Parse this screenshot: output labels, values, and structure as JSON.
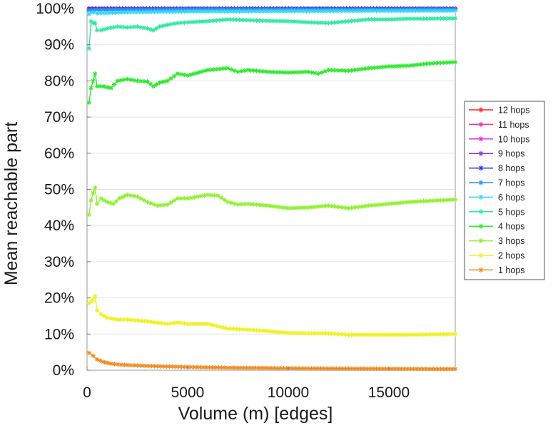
{
  "chart_data": {
    "type": "line",
    "xlabel": "Volume (m) [edges]",
    "ylabel": "Mean reachable part",
    "xlim": [
      0,
      18300
    ],
    "ylim": [
      0,
      100
    ],
    "x_ticks": [
      0,
      5000,
      10000,
      15000
    ],
    "x_tick_labels": [
      "0",
      "5000",
      "10000",
      "15000"
    ],
    "y_ticks": [
      0,
      10,
      20,
      30,
      40,
      50,
      60,
      70,
      80,
      90,
      100
    ],
    "y_tick_labels": [
      "0%",
      "10%",
      "20%",
      "30%",
      "40%",
      "50%",
      "60%",
      "70%",
      "80%",
      "90%",
      "100%"
    ],
    "grid": "horizontal",
    "legend_position": "right",
    "series": [
      {
        "name": "12 hops",
        "color": "#ff2020",
        "points": [
          [
            100,
            100
          ],
          [
            18300,
            100
          ]
        ]
      },
      {
        "name": "11 hops",
        "color": "#ff2a9a",
        "points": [
          [
            100,
            100
          ],
          [
            18300,
            100
          ]
        ]
      },
      {
        "name": "10 hops",
        "color": "#e829e0",
        "points": [
          [
            100,
            100
          ],
          [
            18300,
            100
          ]
        ]
      },
      {
        "name": "9 hops",
        "color": "#8a2be8",
        "points": [
          [
            100,
            100
          ],
          [
            18300,
            100
          ]
        ]
      },
      {
        "name": "8 hops",
        "color": "#2030e8",
        "points": [
          [
            100,
            99.9
          ],
          [
            18300,
            99.9
          ]
        ]
      },
      {
        "name": "7 hops",
        "color": "#2e90f0",
        "points": [
          [
            100,
            99.5
          ],
          [
            500,
            99.7
          ],
          [
            5000,
            99.8
          ],
          [
            18300,
            99.8
          ]
        ]
      },
      {
        "name": "6 hops",
        "color": "#30d8f5",
        "points": [
          [
            100,
            98.5
          ],
          [
            300,
            99
          ],
          [
            500,
            98.7
          ],
          [
            2000,
            99
          ],
          [
            5000,
            99.2
          ],
          [
            10000,
            99.3
          ],
          [
            18300,
            99.4
          ]
        ]
      },
      {
        "name": "5 hops",
        "color": "#2ee8a0",
        "points": [
          [
            100,
            89
          ],
          [
            200,
            96.5
          ],
          [
            300,
            96
          ],
          [
            400,
            96
          ],
          [
            500,
            94
          ],
          [
            700,
            94
          ],
          [
            1000,
            94.5
          ],
          [
            1500,
            95
          ],
          [
            2000,
            94.8
          ],
          [
            2500,
            95
          ],
          [
            3000,
            94.5
          ],
          [
            3300,
            94
          ],
          [
            3600,
            95
          ],
          [
            4000,
            95.5
          ],
          [
            4500,
            96
          ],
          [
            5000,
            96.2
          ],
          [
            6000,
            96.5
          ],
          [
            7000,
            97
          ],
          [
            8000,
            96.8
          ],
          [
            9000,
            96.6
          ],
          [
            10000,
            96.5
          ],
          [
            11000,
            96.2
          ],
          [
            12000,
            96
          ],
          [
            13000,
            96.5
          ],
          [
            14000,
            97
          ],
          [
            15000,
            97
          ],
          [
            16000,
            97.2
          ],
          [
            17000,
            97.2
          ],
          [
            18300,
            97.3
          ]
        ]
      },
      {
        "name": "4 hops",
        "color": "#2ee82e",
        "points": [
          [
            100,
            74
          ],
          [
            200,
            78
          ],
          [
            300,
            80
          ],
          [
            400,
            82
          ],
          [
            500,
            78.5
          ],
          [
            800,
            78.5
          ],
          [
            1200,
            78
          ],
          [
            1500,
            80
          ],
          [
            2000,
            80.5
          ],
          [
            2500,
            80
          ],
          [
            3000,
            79.8
          ],
          [
            3300,
            78.5
          ],
          [
            3600,
            79.5
          ],
          [
            4000,
            80
          ],
          [
            4500,
            82
          ],
          [
            5000,
            81.5
          ],
          [
            6000,
            83
          ],
          [
            7000,
            83.5
          ],
          [
            7500,
            82.5
          ],
          [
            8000,
            83
          ],
          [
            9000,
            82.5
          ],
          [
            10000,
            82.3
          ],
          [
            11000,
            82.5
          ],
          [
            11500,
            82
          ],
          [
            12000,
            83
          ],
          [
            13000,
            82.8
          ],
          [
            14000,
            83.5
          ],
          [
            15000,
            84
          ],
          [
            16000,
            84.2
          ],
          [
            17000,
            84.8
          ],
          [
            18300,
            85.2
          ]
        ]
      },
      {
        "name": "3 hops",
        "color": "#90f030",
        "points": [
          [
            100,
            43
          ],
          [
            200,
            47
          ],
          [
            300,
            49
          ],
          [
            400,
            50.5
          ],
          [
            500,
            46
          ],
          [
            700,
            47.5
          ],
          [
            1000,
            46.5
          ],
          [
            1300,
            46
          ],
          [
            1600,
            47.5
          ],
          [
            2000,
            48.5
          ],
          [
            2500,
            48
          ],
          [
            3000,
            46.5
          ],
          [
            3500,
            45.5
          ],
          [
            4000,
            45.8
          ],
          [
            4500,
            47.5
          ],
          [
            5000,
            47.5
          ],
          [
            5500,
            48
          ],
          [
            6000,
            48.5
          ],
          [
            6500,
            48.3
          ],
          [
            7000,
            46.5
          ],
          [
            7500,
            45.8
          ],
          [
            8000,
            46
          ],
          [
            9000,
            45.5
          ],
          [
            10000,
            44.8
          ],
          [
            11000,
            45
          ],
          [
            12000,
            45.5
          ],
          [
            13000,
            44.8
          ],
          [
            14000,
            45.5
          ],
          [
            15000,
            46
          ],
          [
            16000,
            46.5
          ],
          [
            17000,
            46.8
          ],
          [
            18300,
            47.2
          ]
        ]
      },
      {
        "name": "2 hops",
        "color": "#f0f020",
        "points": [
          [
            100,
            18.5
          ],
          [
            200,
            19
          ],
          [
            300,
            19.5
          ],
          [
            400,
            20.5
          ],
          [
            500,
            16.5
          ],
          [
            700,
            15.5
          ],
          [
            1000,
            14.5
          ],
          [
            1500,
            14
          ],
          [
            2000,
            14
          ],
          [
            3000,
            13.5
          ],
          [
            4000,
            12.8
          ],
          [
            4500,
            13.2
          ],
          [
            5000,
            12.8
          ],
          [
            6000,
            12.8
          ],
          [
            7000,
            11.5
          ],
          [
            8000,
            11.2
          ],
          [
            9000,
            10.8
          ],
          [
            10000,
            10.3
          ],
          [
            11000,
            10.2
          ],
          [
            12000,
            10.2
          ],
          [
            13000,
            9.8
          ],
          [
            14000,
            9.8
          ],
          [
            15000,
            9.8
          ],
          [
            16000,
            9.8
          ],
          [
            17000,
            9.9
          ],
          [
            18300,
            10
          ]
        ]
      },
      {
        "name": "1 hops",
        "color": "#f08a20",
        "points": [
          [
            100,
            4.8
          ],
          [
            300,
            4
          ],
          [
            500,
            3
          ],
          [
            800,
            2.3
          ],
          [
            1200,
            1.8
          ],
          [
            1700,
            1.5
          ],
          [
            2500,
            1.3
          ],
          [
            3500,
            1.1
          ],
          [
            5000,
            0.9
          ],
          [
            7000,
            0.7
          ],
          [
            9000,
            0.6
          ],
          [
            11000,
            0.5
          ],
          [
            13000,
            0.45
          ],
          [
            15000,
            0.4
          ],
          [
            17000,
            0.35
          ],
          [
            18300,
            0.35
          ]
        ]
      }
    ]
  }
}
